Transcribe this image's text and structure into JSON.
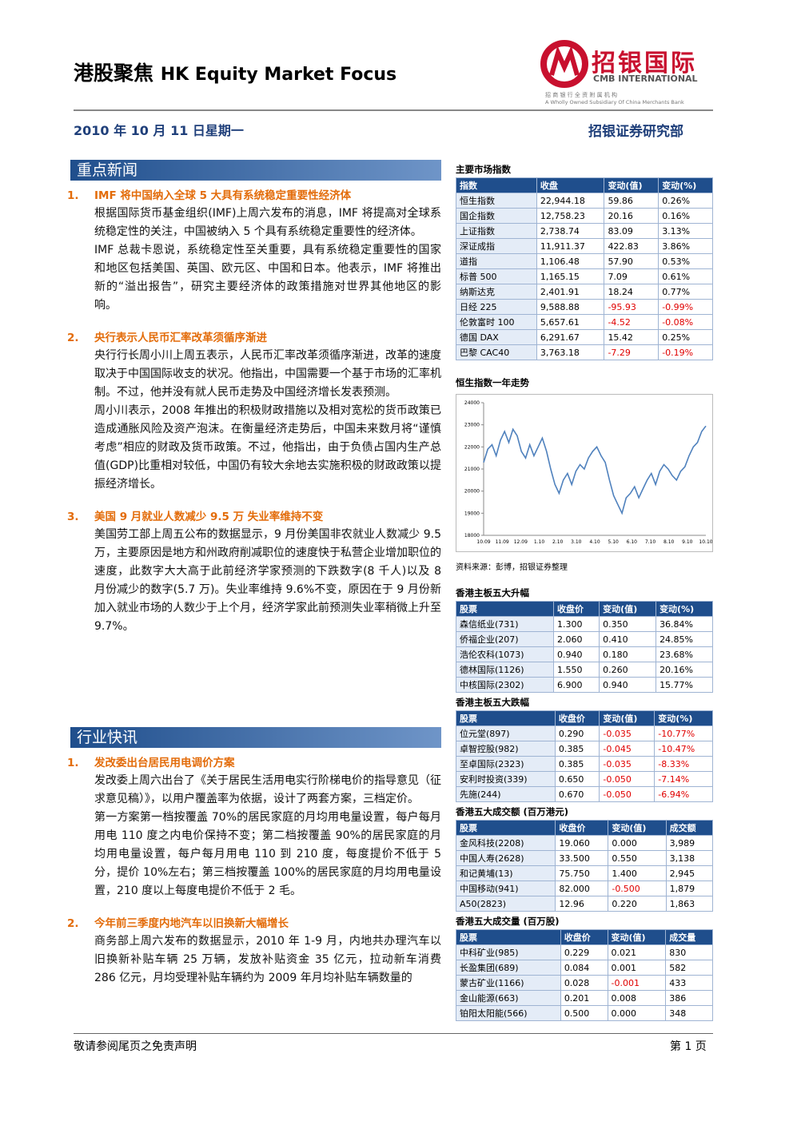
{
  "header": {
    "title_cn": "港股聚焦",
    "title_en": "HK Equity Market Focus",
    "logo_cn": "招银国际",
    "logo_en": "CMB INTERNATIONAL",
    "logo_sub": "招 商 银 行 全 资 附 属 机 构",
    "logo_sub_en": "A Wholly Owned Subsidiary Of China Merchants Bank",
    "date": "2010 年 10 月 11 日星期一",
    "dept": "招银证券研究部"
  },
  "sections": [
    {
      "title": "重点新闻",
      "items": [
        {
          "num": "1.",
          "headline": "IMF 将中国纳入全球 5 大具有系统稳定重要性经济体",
          "paragraphs": [
            "根据国际货币基金组织(IMF)上周六发布的消息，IMF 将提高对全球系统稳定性的关注，中国被纳入 5 个具有系统稳定重要性的经济体。",
            "IMF 总裁卡恩说，系统稳定性至关重要，具有系统稳定重要性的国家和地区包括美国、英国、欧元区、中国和日本。他表示，IMF 将推出新的“溢出报告”，研究主要经济体的政策措施对世界其他地区的影响。"
          ]
        },
        {
          "num": "2.",
          "headline": "央行表示人民币汇率改革须循序渐进",
          "paragraphs": [
            "央行行长周小川上周五表示，人民币汇率改革须循序渐进，改革的速度取决于中国国际收支的状况。他指出，中国需要一个基于市场的汇率机制。不过，他并没有就人民币走势及中国经济增长发表预测。",
            "周小川表示，2008 年推出的积极财政措施以及相对宽松的货币政策已造成通胀风险及资产泡沫。在衡量经济走势后，中国未来数月将“谨慎考虑”相应的财政及货币政策。不过，他指出，由于负债占国内生产总值(GDP)比重相对较低，中国仍有较大余地去实施积极的财政政策以提振经济增长。"
          ]
        },
        {
          "num": "3.",
          "headline": "美国 9 月就业人数减少 9.5 万  失业率维持不变",
          "paragraphs": [
            "美国劳工部上周五公布的数据显示，9 月份美国非农就业人数减少 9.5 万，主要原因是地方和州政府削减职位的速度快于私营企业增加职位的速度，此数字大大高于此前经济学家预测的下跌数字(8 千人)以及 8 月份减少的数字(5.7 万)。失业率维持 9.6%不变，原因在于 9 月份新加入就业市场的人数少于上个月，经济学家此前预测失业率稍微上升至 9.7%。"
          ]
        }
      ]
    },
    {
      "title": "行业快讯",
      "items": [
        {
          "num": "1.",
          "headline": "发改委出台居民用电调价方案",
          "paragraphs": [
            "发改委上周六出台了《关于居民生活用电实行阶梯电价的指导意见（征求意见稿）》，以用户覆盖率为依据，设计了两套方案，三档定价。",
            "第一方案第一档按覆盖 70%的居民家庭的月均用电量设置，每户每月用电 110 度之内电价保持不变；第二档按覆盖 90%的居民家庭的月均用电量设置，每户每月用电 110 到 210 度，每度提价不低于 5 分，提价 10%左右；第三档按覆盖 100%的居民家庭的月均用电量设置，210 度以上每度电提价不低于 2 毛。"
          ]
        },
        {
          "num": "2.",
          "headline": "今年前三季度内地汽车以旧换新大幅增长",
          "paragraphs": [
            "商务部上周六发布的数据显示，2010 年 1-9 月，内地共办理汽车以旧换新补贴车辆 25 万辆，发放补贴资金 35 亿元，拉动新车消费 286 亿元，月均受理补贴车辆约为 2009 年月均补贴车辆数量的"
          ]
        }
      ]
    }
  ],
  "indices": {
    "title": "主要市场指数",
    "header": [
      "指数",
      "收盘",
      "变动(值)",
      "变动(%)"
    ],
    "rows": [
      [
        "恒生指数",
        "22,944.18",
        "59.86",
        "0.26%"
      ],
      [
        "国企指数",
        "12,758.23",
        "20.16",
        "0.16%"
      ],
      [
        "上证指数",
        "2,738.74",
        "83.09",
        "3.13%"
      ],
      [
        "深证成指",
        "11,911.37",
        "422.83",
        "3.86%"
      ],
      [
        "道指",
        "1,106.48",
        "57.90",
        "0.53%"
      ],
      [
        "标普 500",
        "1,165.15",
        "7.09",
        "0.61%"
      ],
      [
        "纳斯达克",
        "2,401.91",
        "18.24",
        "0.77%"
      ],
      [
        "日经 225",
        "9,588.88",
        "-95.93",
        "-0.99%"
      ],
      [
        "伦敦富时 100",
        "5,657.61",
        "-4.52",
        "-0.08%"
      ],
      [
        "德国 DAX",
        "6,291.67",
        "15.42",
        "0.25%"
      ],
      [
        "巴黎 CAC40",
        "3,763.18",
        "-7.29",
        "-0.19%"
      ]
    ]
  },
  "hsi_chart": {
    "type": "line",
    "title": "恒生指数一年走势",
    "source": "资料来源：彭博，招银证券整理",
    "color": "#4f81bd",
    "ylim": [
      18000,
      24000
    ],
    "yticks": [
      18000,
      19000,
      20000,
      21000,
      22000,
      23000,
      24000
    ],
    "xticks": [
      "10.09",
      "11.09",
      "12.09",
      "1.10",
      "2.10",
      "3.10",
      "4.10",
      "5.10",
      "6.10",
      "7.10",
      "8.10",
      "9.10",
      "10.10"
    ],
    "values": [
      21300,
      21900,
      22100,
      21600,
      22300,
      22700,
      22200,
      22800,
      22500,
      21800,
      21500,
      22100,
      21600,
      22000,
      22400,
      21800,
      21000,
      20300,
      19900,
      20500,
      20800,
      20300,
      20900,
      21200,
      21000,
      21500,
      21800,
      22000,
      21600,
      21300,
      20500,
      19800,
      19400,
      19000,
      19700,
      19900,
      20200,
      19700,
      20100,
      20500,
      20800,
      20300,
      20900,
      21200,
      21000,
      20700,
      20500,
      20900,
      21100,
      21600,
      22000,
      22200,
      22700,
      22944
    ]
  },
  "tables": [
    {
      "title": "香港主板五大升幅",
      "header": [
        "股票",
        "收盘价",
        "变动(值)",
        "变动(%)"
      ],
      "rows": [
        [
          "森信纸业(731)",
          "1.300",
          "0.350",
          "36.84%"
        ],
        [
          "侨福企业(207)",
          "2.060",
          "0.410",
          "24.85%"
        ],
        [
          "浩伦农科(1073)",
          "0.940",
          "0.180",
          "23.68%"
        ],
        [
          "德林国际(1126)",
          "1.550",
          "0.260",
          "20.16%"
        ],
        [
          "中核国际(2302)",
          "6.900",
          "0.940",
          "15.77%"
        ]
      ]
    },
    {
      "title": "香港主板五大跌幅",
      "header": [
        "股票",
        "收盘价",
        "变动(值)",
        "变动(%)"
      ],
      "rows": [
        [
          "位元堂(897)",
          "0.290",
          "-0.035",
          "-10.77%"
        ],
        [
          "卓智控股(982)",
          "0.385",
          "-0.045",
          "-10.47%"
        ],
        [
          "至卓国际(2323)",
          "0.385",
          "-0.035",
          "-8.33%"
        ],
        [
          "安利时投资(339)",
          "0.650",
          "-0.050",
          "-7.14%"
        ],
        [
          "先施(244)",
          "0.670",
          "-0.050",
          "-6.94%"
        ]
      ]
    },
    {
      "title": "香港五大成交额 (百万港元)",
      "header": [
        "股票",
        "收盘价",
        "变动(值)",
        "成交额"
      ],
      "rows": [
        [
          "金风科技(2208)",
          "19.060",
          "0.000",
          "3,989"
        ],
        [
          "中国人寿(2628)",
          "33.500",
          "0.550",
          "3,138"
        ],
        [
          "和记黄埔(13)",
          "75.750",
          "1.400",
          "2,945"
        ],
        [
          "中国移动(941)",
          "82.000",
          "-0.500",
          "1,879"
        ],
        [
          "A50(2823)",
          "12.96",
          "0.220",
          "1,863"
        ]
      ]
    },
    {
      "title": "香港五大成交量 (百万股)",
      "header": [
        "股票",
        "收盘价",
        "变动(值)",
        "成交量"
      ],
      "rows": [
        [
          "中科矿业(985)",
          "0.229",
          "0.021",
          "830"
        ],
        [
          "长盈集团(689)",
          "0.084",
          "0.001",
          "582"
        ],
        [
          "蒙古矿业(1166)",
          "0.028",
          "-0.001",
          "433"
        ],
        [
          "金山能源(663)",
          "0.201",
          "0.008",
          "386"
        ],
        [
          "铂阳太阳能(566)",
          "0.500",
          "0.000",
          "348"
        ]
      ]
    }
  ],
  "footer": {
    "note": "敬请参阅尾页之免责声明",
    "page": "第 1 页"
  }
}
